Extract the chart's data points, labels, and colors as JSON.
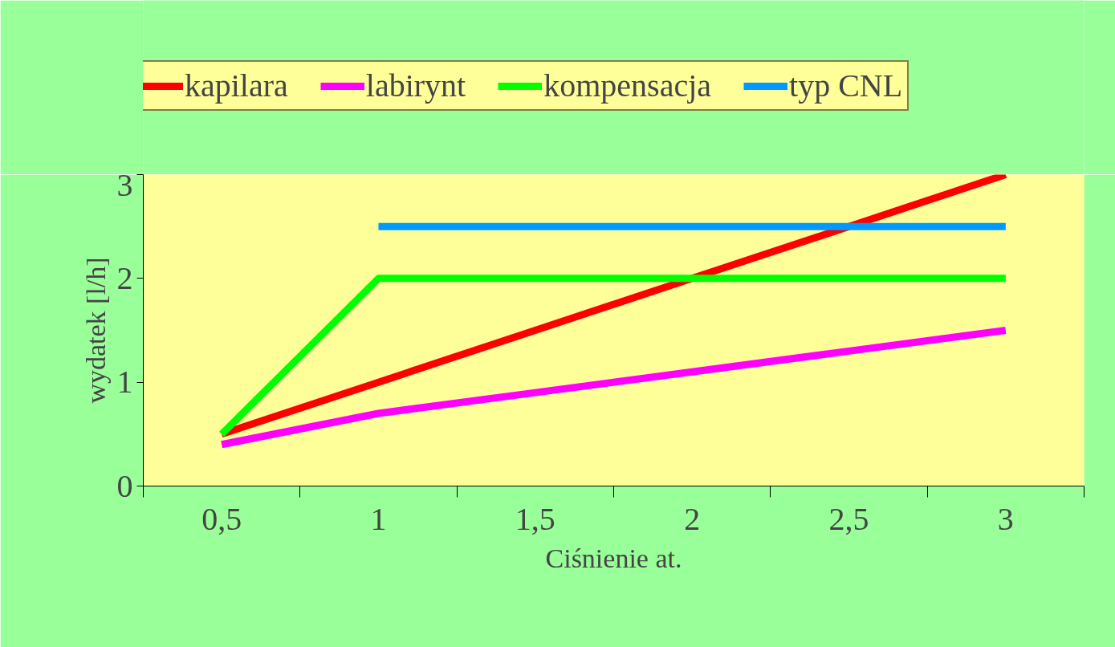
{
  "chart_data": {
    "type": "line",
    "xlabel": "Ciśnienie at.",
    "ylabel": "wydatek [l/h]",
    "categories": [
      "0,5",
      "1",
      "1,5",
      "2",
      "2,5",
      "3"
    ],
    "series": [
      {
        "name": "kapilara",
        "color": "#ff0000",
        "values": [
          0.5,
          1,
          1.5,
          2,
          2.5,
          3
        ]
      },
      {
        "name": "labirynt",
        "color": "#ff00ff",
        "values": [
          0.4,
          0.7,
          0.9,
          1.1,
          1.3,
          1.5
        ]
      },
      {
        "name": "kompensacja",
        "color": "#00ff00",
        "values": [
          0.5,
          2,
          2,
          2,
          2,
          2
        ]
      },
      {
        "name": "typ CNL",
        "color": "#0099ff",
        "values": [
          null,
          2.5,
          2.5,
          2.5,
          2.5,
          2.5
        ]
      }
    ],
    "ylim": [
      0,
      3
    ],
    "yticks": [
      0,
      1,
      2,
      3
    ],
    "grid": false,
    "legend": "top",
    "marker": "none",
    "line_style": "solid"
  }
}
